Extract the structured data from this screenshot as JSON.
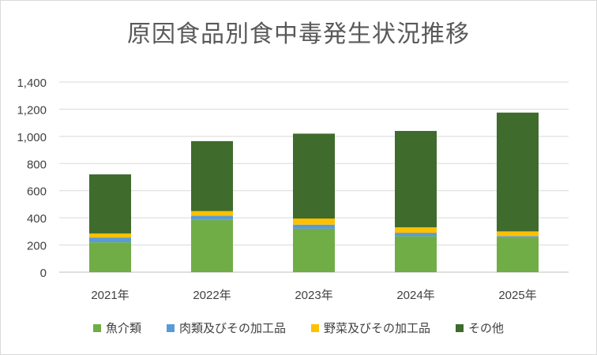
{
  "chart_data": {
    "type": "bar",
    "stacked": true,
    "title": "原因食品別食中毒発生状況推移",
    "categories": [
      "2021年",
      "2022年",
      "2023年",
      "2024年",
      "2025年"
    ],
    "series": [
      {
        "name": "魚介類",
        "color": "#70ad47",
        "values": [
          220,
          385,
          320,
          265,
          255
        ]
      },
      {
        "name": "肉類及びその加工品",
        "color": "#5b9bd5",
        "values": [
          35,
          30,
          30,
          25,
          10
        ]
      },
      {
        "name": "野菜及びその加工品",
        "color": "#ffc000",
        "values": [
          30,
          35,
          45,
          40,
          35
        ]
      },
      {
        "name": "その他",
        "color": "#3f6b2c",
        "values": [
          435,
          515,
          625,
          710,
          875
        ]
      }
    ],
    "ylim": [
      0,
      1400
    ],
    "yticks": [
      "0",
      "200",
      "400",
      "600",
      "800",
      "1,000",
      "1,200",
      "1,400"
    ],
    "grid": true,
    "legend_position": "bottom"
  }
}
